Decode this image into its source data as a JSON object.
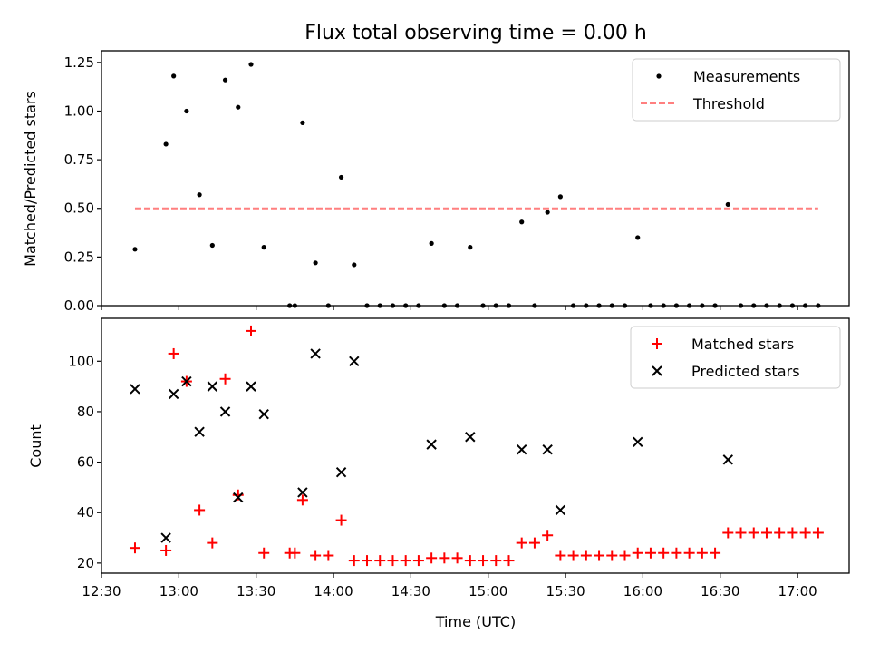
{
  "chart_data": [
    {
      "type": "scatter",
      "title": "Flux total observing time = 0.00 h",
      "xlabel": "",
      "ylabel": "Matched/Predicted stars",
      "ylim": [
        0,
        1.31
      ],
      "xlim": [
        "12:30",
        "17:20"
      ],
      "yticks": [
        "0.00",
        "0.25",
        "0.50",
        "0.75",
        "1.00",
        "1.25"
      ],
      "legend_position": "top-right",
      "colors": {
        "measurements": "#000000",
        "threshold": "#ff7f7f"
      },
      "series": [
        {
          "name": "Measurements",
          "marker": "dot",
          "x": [
            "12:43",
            "12:55",
            "12:58",
            "13:03",
            "13:08",
            "13:13",
            "13:18",
            "13:23",
            "13:28",
            "13:33",
            "13:43",
            "13:45",
            "13:48",
            "13:53",
            "13:58",
            "14:03",
            "14:08",
            "14:13",
            "14:18",
            "14:23",
            "14:28",
            "14:33",
            "14:38",
            "14:43",
            "14:48",
            "14:53",
            "14:58",
            "15:03",
            "15:08",
            "15:13",
            "15:18",
            "15:23",
            "15:28",
            "15:33",
            "15:38",
            "15:43",
            "15:48",
            "15:53",
            "15:58",
            "16:03",
            "16:08",
            "16:13",
            "16:18",
            "16:23",
            "16:28",
            "16:33",
            "16:38",
            "16:43",
            "16:48",
            "16:53",
            "16:58",
            "17:03",
            "17:08"
          ],
          "y": [
            0.29,
            0.83,
            1.18,
            1.0,
            0.57,
            0.31,
            1.16,
            1.02,
            1.24,
            0.3,
            0.0,
            0.0,
            0.94,
            0.22,
            0.0,
            0.66,
            0.21,
            0.0,
            0.0,
            0.0,
            0.0,
            0.0,
            0.32,
            0.0,
            0.0,
            0.3,
            0.0,
            0.0,
            0.0,
            0.43,
            0.0,
            0.48,
            0.56,
            0.0,
            0.0,
            0.0,
            0.0,
            0.0,
            0.35,
            0.0,
            0.0,
            0.0,
            0.0,
            0.0,
            0.0,
            0.52,
            0.0,
            0.0,
            0.0,
            0.0,
            0.0,
            0.0,
            0.0
          ]
        },
        {
          "name": "Threshold",
          "style": "dashed",
          "x": [
            "12:43",
            "17:08"
          ],
          "y": [
            0.5,
            0.5
          ]
        }
      ]
    },
    {
      "type": "scatter",
      "title": "",
      "xlabel": "Time (UTC)",
      "ylabel": "Count",
      "ylim": [
        16,
        117
      ],
      "xlim": [
        "12:30",
        "17:20"
      ],
      "xticks": [
        "12:30",
        "13:00",
        "13:30",
        "14:00",
        "14:30",
        "15:00",
        "15:30",
        "16:00",
        "16:30",
        "17:00"
      ],
      "yticks": [
        "20",
        "40",
        "60",
        "80",
        "100"
      ],
      "legend_position": "top-right",
      "colors": {
        "matched": "#ff0000",
        "predicted": "#000000"
      },
      "series": [
        {
          "name": "Matched stars",
          "marker": "plus",
          "x": [
            "12:43",
            "12:55",
            "12:58",
            "13:03",
            "13:08",
            "13:13",
            "13:18",
            "13:23",
            "13:28",
            "13:33",
            "13:43",
            "13:45",
            "13:48",
            "13:53",
            "13:58",
            "14:03",
            "14:08",
            "14:13",
            "14:18",
            "14:23",
            "14:28",
            "14:33",
            "14:38",
            "14:43",
            "14:48",
            "14:53",
            "14:58",
            "15:03",
            "15:08",
            "15:13",
            "15:18",
            "15:23",
            "15:28",
            "15:33",
            "15:38",
            "15:43",
            "15:48",
            "15:53",
            "15:58",
            "16:03",
            "16:08",
            "16:13",
            "16:18",
            "16:23",
            "16:28",
            "16:33",
            "16:38",
            "16:43",
            "16:48",
            "16:53",
            "16:58",
            "17:03",
            "17:08"
          ],
          "y": [
            26,
            25,
            103,
            92,
            41,
            28,
            93,
            47,
            112,
            24,
            24,
            24,
            45,
            23,
            23,
            37,
            21,
            21,
            21,
            21,
            21,
            21,
            22,
            22,
            22,
            21,
            21,
            21,
            21,
            28,
            28,
            31,
            23,
            23,
            23,
            23,
            23,
            23,
            24,
            24,
            24,
            24,
            24,
            24,
            24,
            32,
            32,
            32,
            32,
            32,
            32,
            32,
            32
          ]
        },
        {
          "name": "Predicted stars",
          "marker": "x",
          "x": [
            "12:43",
            "12:55",
            "12:58",
            "13:03",
            "13:08",
            "13:13",
            "13:18",
            "13:23",
            "13:28",
            "13:33",
            "13:48",
            "13:53",
            "14:03",
            "14:08",
            "14:38",
            "14:53",
            "15:13",
            "15:23",
            "15:28",
            "15:58",
            "16:33"
          ],
          "y": [
            89,
            30,
            87,
            92,
            72,
            90,
            80,
            46,
            90,
            79,
            48,
            103,
            56,
            100,
            67,
            70,
            65,
            65,
            41,
            68,
            61
          ]
        }
      ]
    }
  ]
}
